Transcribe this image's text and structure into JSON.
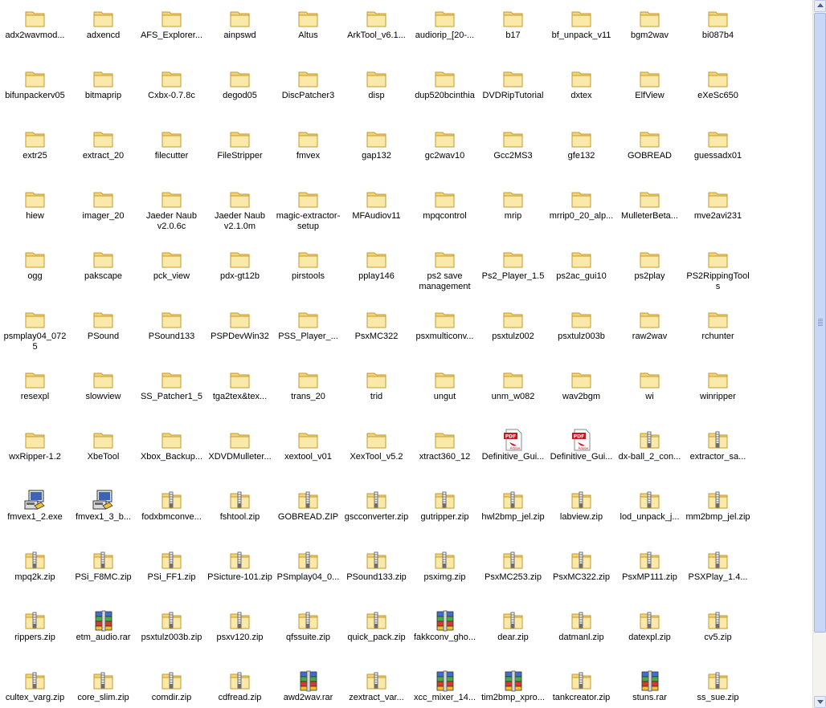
{
  "window": {
    "scrollbar": {
      "position_fraction": 0.0
    }
  },
  "icon_types": {
    "folder": {
      "name": "folder-icon",
      "colors": {
        "body": "#f3d478",
        "light": "#fbe9a9",
        "edge": "#c69a2c"
      }
    },
    "zip": {
      "name": "zip-folder-icon",
      "colors": {
        "body": "#f3d478",
        "zipper": "#6e6e6e"
      }
    },
    "rar": {
      "name": "rar-archive-icon",
      "colors": {
        "blue": "#3d6fd1",
        "green": "#49a84a",
        "red": "#d8392c",
        "yellow": "#f2c02e"
      }
    },
    "pdf": {
      "name": "pdf-document-icon",
      "colors": {
        "red": "#c8161d"
      }
    },
    "exe": {
      "name": "setup-program-icon",
      "colors": {
        "screen": "#3a63b9"
      }
    }
  },
  "files": [
    {
      "label": "adx2wavmod...",
      "type": "folder"
    },
    {
      "label": "adxencd",
      "type": "folder"
    },
    {
      "label": "AFS_Explorer...",
      "type": "folder"
    },
    {
      "label": "ainpswd",
      "type": "folder"
    },
    {
      "label": "Altus",
      "type": "folder"
    },
    {
      "label": "ArkTool_v6.1...",
      "type": "folder"
    },
    {
      "label": "audiorip_[20-...",
      "type": "folder"
    },
    {
      "label": "b17",
      "type": "folder"
    },
    {
      "label": "bf_unpack_v11",
      "type": "folder"
    },
    {
      "label": "bgm2wav",
      "type": "folder"
    },
    {
      "label": "bi087b4",
      "type": "folder"
    },
    {
      "label": "bifunpackerv05",
      "type": "folder"
    },
    {
      "label": "bitmaprip",
      "type": "folder"
    },
    {
      "label": "Cxbx-0.7.8c",
      "type": "folder"
    },
    {
      "label": "degod05",
      "type": "folder"
    },
    {
      "label": "DiscPatcher3",
      "type": "folder"
    },
    {
      "label": "disp",
      "type": "folder"
    },
    {
      "label": "dup520bcinthia",
      "type": "folder"
    },
    {
      "label": "DVDRipTutorial",
      "type": "folder"
    },
    {
      "label": "dxtex",
      "type": "folder"
    },
    {
      "label": "ElfView",
      "type": "folder"
    },
    {
      "label": "eXeSc650",
      "type": "folder"
    },
    {
      "label": "extr25",
      "type": "folder"
    },
    {
      "label": "extract_20",
      "type": "folder"
    },
    {
      "label": "filecutter",
      "type": "folder"
    },
    {
      "label": "FileStripper",
      "type": "folder"
    },
    {
      "label": "fmvex",
      "type": "folder"
    },
    {
      "label": "gap132",
      "type": "folder"
    },
    {
      "label": "gc2wav10",
      "type": "folder"
    },
    {
      "label": "Gcc2MS3",
      "type": "folder"
    },
    {
      "label": "gfe132",
      "type": "folder"
    },
    {
      "label": "GOBREAD",
      "type": "folder"
    },
    {
      "label": "guessadx01",
      "type": "folder"
    },
    {
      "label": "hiew",
      "type": "folder"
    },
    {
      "label": "imager_20",
      "type": "folder"
    },
    {
      "label": "Jaeder Naub v2.0.6c",
      "type": "folder"
    },
    {
      "label": "Jaeder Naub v2.1.0m",
      "type": "folder"
    },
    {
      "label": "magic-extractor-setup",
      "type": "folder"
    },
    {
      "label": "MFAudiov11",
      "type": "folder"
    },
    {
      "label": "mpqcontrol",
      "type": "folder"
    },
    {
      "label": "mrip",
      "type": "folder"
    },
    {
      "label": "mrrip0_20_alp...",
      "type": "folder"
    },
    {
      "label": "MulleterBeta...",
      "type": "folder"
    },
    {
      "label": "mve2avi231",
      "type": "folder"
    },
    {
      "label": "ogg",
      "type": "folder"
    },
    {
      "label": "pakscape",
      "type": "folder"
    },
    {
      "label": "pck_view",
      "type": "folder"
    },
    {
      "label": "pdx-gt12b",
      "type": "folder"
    },
    {
      "label": "pirstools",
      "type": "folder"
    },
    {
      "label": "pplay146",
      "type": "folder"
    },
    {
      "label": "ps2 save management",
      "type": "folder"
    },
    {
      "label": "Ps2_Player_1.5",
      "type": "folder"
    },
    {
      "label": "ps2ac_gui10",
      "type": "folder"
    },
    {
      "label": "ps2play",
      "type": "folder"
    },
    {
      "label": "PS2RippingTools",
      "type": "folder"
    },
    {
      "label": "psmplay04_0725",
      "type": "folder"
    },
    {
      "label": "PSound",
      "type": "folder"
    },
    {
      "label": "PSound133",
      "type": "folder"
    },
    {
      "label": "PSPDevWin32",
      "type": "folder"
    },
    {
      "label": "PSS_Player_...",
      "type": "folder"
    },
    {
      "label": "PsxMC322",
      "type": "folder"
    },
    {
      "label": "psxmulticonv...",
      "type": "folder"
    },
    {
      "label": "psxtulz002",
      "type": "folder"
    },
    {
      "label": "psxtulz003b",
      "type": "folder"
    },
    {
      "label": "raw2wav",
      "type": "folder"
    },
    {
      "label": "rchunter",
      "type": "folder"
    },
    {
      "label": "resexpl",
      "type": "folder"
    },
    {
      "label": "slowview",
      "type": "folder"
    },
    {
      "label": "SS_Patcher1_5",
      "type": "folder"
    },
    {
      "label": "tga2tex&tex...",
      "type": "folder"
    },
    {
      "label": "trans_20",
      "type": "folder"
    },
    {
      "label": "trid",
      "type": "folder"
    },
    {
      "label": "ungut",
      "type": "folder"
    },
    {
      "label": "unm_w082",
      "type": "folder"
    },
    {
      "label": "wav2bgm",
      "type": "folder"
    },
    {
      "label": "wi",
      "type": "folder"
    },
    {
      "label": "winripper",
      "type": "folder"
    },
    {
      "label": "wxRipper-1.2",
      "type": "folder"
    },
    {
      "label": "XbeTool",
      "type": "folder"
    },
    {
      "label": "Xbox_Backup...",
      "type": "folder"
    },
    {
      "label": "XDVDMulleter...",
      "type": "folder"
    },
    {
      "label": "xextool_v01",
      "type": "folder"
    },
    {
      "label": "XexTool_v5.2",
      "type": "folder"
    },
    {
      "label": "xtract360_12",
      "type": "folder"
    },
    {
      "label": "Definitive_Gui...",
      "type": "pdf"
    },
    {
      "label": "Definitive_Gui...",
      "type": "pdf"
    },
    {
      "label": "dx-ball_2_con...",
      "type": "zip"
    },
    {
      "label": "extractor_sa...",
      "type": "zip"
    },
    {
      "label": "fmvex1_2.exe",
      "type": "exe"
    },
    {
      "label": "fmvex1_3_b...",
      "type": "exe"
    },
    {
      "label": "fodxbmconve...",
      "type": "zip"
    },
    {
      "label": "fshtool.zip",
      "type": "zip"
    },
    {
      "label": "GOBREAD.ZIP",
      "type": "zip"
    },
    {
      "label": "gscconverter.zip",
      "type": "zip"
    },
    {
      "label": "gutripper.zip",
      "type": "zip"
    },
    {
      "label": "hwl2bmp_jel.zip",
      "type": "zip"
    },
    {
      "label": "labview.zip",
      "type": "zip"
    },
    {
      "label": "lod_unpack_j...",
      "type": "zip"
    },
    {
      "label": "mm2bmp_jel.zip",
      "type": "zip"
    },
    {
      "label": "mpq2k.zip",
      "type": "zip"
    },
    {
      "label": "PSi_F8MC.zip",
      "type": "zip"
    },
    {
      "label": "PSi_FF1.zip",
      "type": "zip"
    },
    {
      "label": "PSicture-101.zip",
      "type": "zip"
    },
    {
      "label": "PSmplay04_0...",
      "type": "zip"
    },
    {
      "label": "PSound133.zip",
      "type": "zip"
    },
    {
      "label": "psximg.zip",
      "type": "zip"
    },
    {
      "label": "PsxMC253.zip",
      "type": "zip"
    },
    {
      "label": "PsxMC322.zip",
      "type": "zip"
    },
    {
      "label": "PsxMP111.zip",
      "type": "zip"
    },
    {
      "label": "PSXPlay_1.4...",
      "type": "zip"
    },
    {
      "label": "rippers.zip",
      "type": "zip"
    },
    {
      "label": "etm_audio.rar",
      "type": "rar"
    },
    {
      "label": "psxtulz003b.zip",
      "type": "zip"
    },
    {
      "label": "psxv120.zip",
      "type": "zip"
    },
    {
      "label": "qfssuite.zip",
      "type": "zip"
    },
    {
      "label": "quick_pack.zip",
      "type": "zip"
    },
    {
      "label": "fakkconv_gho...",
      "type": "rar"
    },
    {
      "label": "dear.zip",
      "type": "zip"
    },
    {
      "label": "datmanl.zip",
      "type": "zip"
    },
    {
      "label": "datexpl.zip",
      "type": "zip"
    },
    {
      "label": "cv5.zip",
      "type": "zip"
    },
    {
      "label": "cultex_varg.zip",
      "type": "zip"
    },
    {
      "label": "core_slim.zip",
      "type": "zip"
    },
    {
      "label": "comdir.zip",
      "type": "zip"
    },
    {
      "label": "cdfread.zip",
      "type": "zip"
    },
    {
      "label": "awd2wav.rar",
      "type": "rar"
    },
    {
      "label": "zextract_var...",
      "type": "zip"
    },
    {
      "label": "xcc_mixer_14...",
      "type": "rar"
    },
    {
      "label": "tim2bmp_xpro...",
      "type": "rar"
    },
    {
      "label": "tankcreator.zip",
      "type": "zip"
    },
    {
      "label": "stuns.rar",
      "type": "rar"
    },
    {
      "label": "ss_sue.zip",
      "type": "zip"
    }
  ]
}
